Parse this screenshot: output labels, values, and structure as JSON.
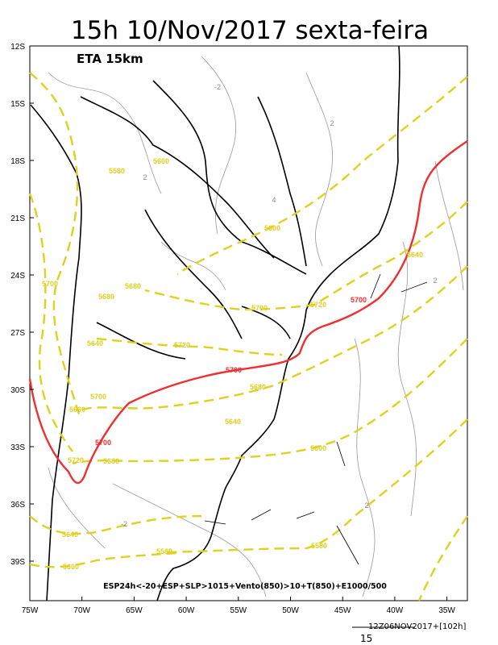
{
  "title": "15h 10/Nov/2017 sexta-feira",
  "model": "ETA 15km",
  "caption": "ESP24h<-20+ESP+SLP>1015+Vento(850)>10+T(850)+E1000/500",
  "footer": {
    "run": "12Z06NOV2017+[102h]",
    "scale": "15"
  },
  "lat_labels": [
    "12S",
    "15S",
    "18S",
    "21S",
    "24S",
    "27S",
    "30S",
    "33S",
    "36S",
    "39S"
  ],
  "lon_labels": [
    "75W",
    "70W",
    "65W",
    "60W",
    "55W",
    "50W",
    "45W",
    "40W",
    "35W"
  ],
  "red_labels": [
    "5700",
    "5700",
    "5700"
  ],
  "yellow_labels": [
    "5600",
    "5580",
    "5600",
    "5640",
    "5720",
    "5700",
    "5720",
    "5680",
    "5680",
    "5700",
    "5640",
    "5700",
    "5660",
    "5680",
    "5640",
    "5600",
    "5720",
    "5680",
    "5640",
    "5580",
    "5600",
    "5580"
  ],
  "gray_labels": [
    "-2",
    "2",
    "2",
    "4",
    "2",
    "-2",
    "2"
  ]
}
